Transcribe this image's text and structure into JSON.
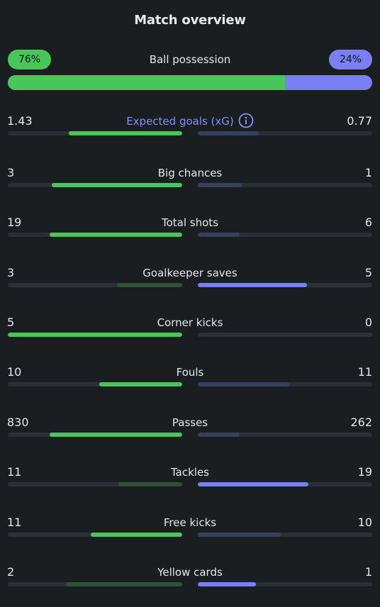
{
  "title": "Match overview",
  "colors": {
    "home": "#49c65a",
    "away": "#7b7ff5",
    "home_dim": "#2f5236",
    "away_dim": "#3a3f5e"
  },
  "possession": {
    "label": "Ball possession",
    "home": "76%",
    "away": "24%",
    "home_fraction": 0.76
  },
  "stats": [
    {
      "label": "Expected goals (xG)",
      "home": "1.43",
      "away": "0.77",
      "home_share": 0.65,
      "away_share": 0.35,
      "winner": "home",
      "info": true
    },
    {
      "label": "Big chances",
      "home": "3",
      "away": "1",
      "home_share": 0.75,
      "away_share": 0.25,
      "winner": "home"
    },
    {
      "label": "Total shots",
      "home": "19",
      "away": "6",
      "home_share": 0.76,
      "away_share": 0.24,
      "winner": "home"
    },
    {
      "label": "Goalkeeper saves",
      "home": "3",
      "away": "5",
      "home_share": 0.375,
      "away_share": 0.625,
      "winner": "away"
    },
    {
      "label": "Corner kicks",
      "home": "5",
      "away": "0",
      "home_share": 1.0,
      "away_share": 0.0,
      "winner": "home"
    },
    {
      "label": "Fouls",
      "home": "10",
      "away": "11",
      "home_share": 0.476,
      "away_share": 0.524,
      "winner": "home"
    },
    {
      "label": "Passes",
      "home": "830",
      "away": "262",
      "home_share": 0.76,
      "away_share": 0.24,
      "winner": "home"
    },
    {
      "label": "Tackles",
      "home": "11",
      "away": "19",
      "home_share": 0.367,
      "away_share": 0.633,
      "winner": "away"
    },
    {
      "label": "Free kicks",
      "home": "11",
      "away": "10",
      "home_share": 0.524,
      "away_share": 0.476,
      "winner": "home"
    },
    {
      "label": "Yellow cards",
      "home": "2",
      "away": "1",
      "home_share": 0.667,
      "away_share": 0.333,
      "winner": "away"
    }
  ]
}
